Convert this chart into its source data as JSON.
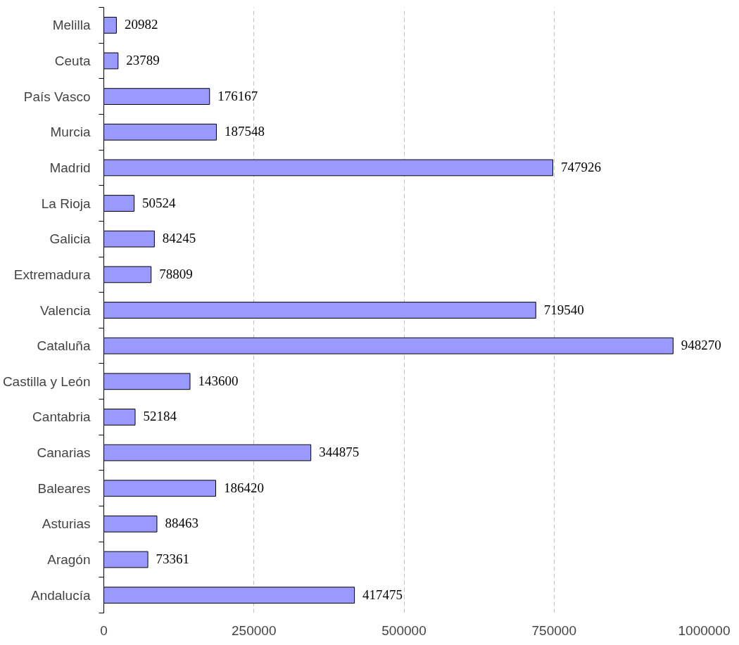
{
  "chart_data": {
    "type": "bar",
    "orientation": "horizontal",
    "categories": [
      "Melilla",
      "Ceuta",
      "País Vasco",
      "Murcia",
      "Madrid",
      "La Rioja",
      "Galicia",
      "Extremadura",
      "Valencia",
      "Cataluña",
      "Castilla y León",
      "Cantabria",
      "Canarias",
      "Baleares",
      "Asturias",
      "Aragón",
      "Andalucía"
    ],
    "values": [
      20982,
      23789,
      176167,
      187548,
      747926,
      50524,
      84245,
      78809,
      719540,
      948270,
      143600,
      52184,
      344875,
      186420,
      88463,
      73361,
      417475
    ],
    "color": "#9999ff",
    "xlim": [
      0,
      1000000
    ],
    "xticks": [
      0,
      250000,
      500000,
      750000,
      1000000
    ],
    "grid": "x",
    "data_labels": true
  }
}
